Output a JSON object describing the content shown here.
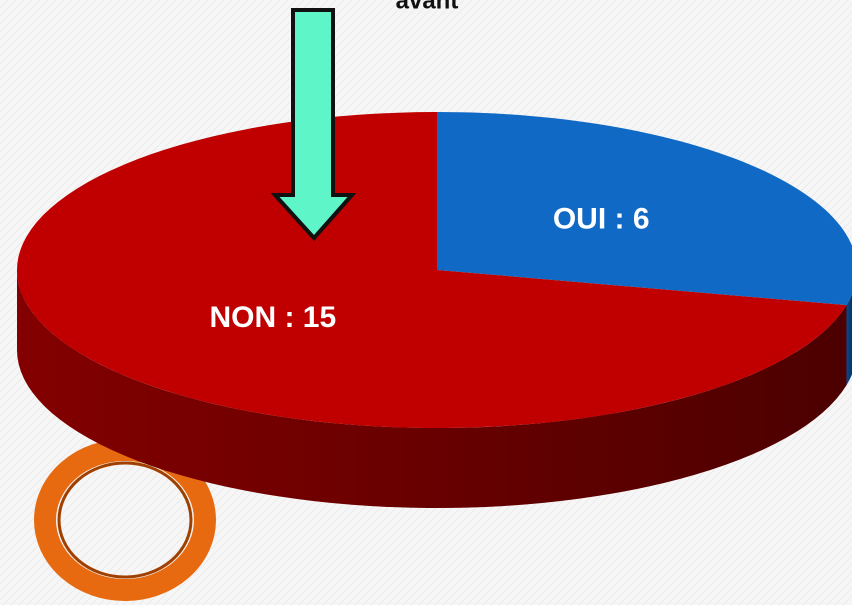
{
  "chart_data": {
    "type": "pie3d",
    "annotation": "avant",
    "values": [
      6,
      15
    ],
    "value_labels": [
      "OUI : 6",
      "NON : 15"
    ],
    "colors": [
      "#1069c4",
      "#c00000"
    ],
    "side_colors": [
      "#0a4a8c",
      "#8a0000"
    ]
  }
}
